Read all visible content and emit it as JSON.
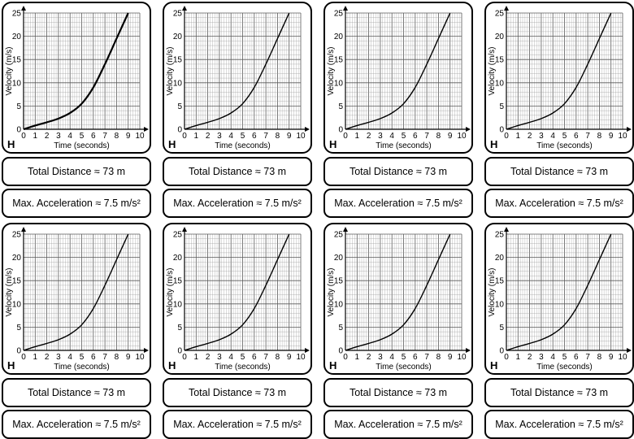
{
  "cards": [
    {
      "level": "H",
      "distance": "Total Distance ≈ 73 m",
      "acceleration": "Max. Acceleration ≈ 7.5 m/s²"
    },
    {
      "level": "H",
      "distance": "Total Distance ≈ 73 m",
      "acceleration": "Max. Acceleration ≈ 7.5 m/s²"
    },
    {
      "level": "H",
      "distance": "Total Distance ≈ 73 m",
      "acceleration": "Max. Acceleration ≈ 7.5 m/s²"
    },
    {
      "level": "H",
      "distance": "Total Distance ≈ 73 m",
      "acceleration": "Max. Acceleration ≈ 7.5 m/s²"
    },
    {
      "level": "H",
      "distance": "Total Distance ≈ 73 m",
      "acceleration": "Max. Acceleration ≈ 7.5 m/s²"
    },
    {
      "level": "H",
      "distance": "Total Distance ≈ 73 m",
      "acceleration": "Max. Acceleration ≈ 7.5 m/s²"
    },
    {
      "level": "H",
      "distance": "Total Distance ≈ 73 m",
      "acceleration": "Max. Acceleration ≈ 7.5 m/s²"
    },
    {
      "level": "H",
      "distance": "Total Distance ≈ 73 m",
      "acceleration": "Max. Acceleration ≈ 7.5 m/s²"
    }
  ],
  "chart_data": {
    "type": "line",
    "xlabel": "Time (seconds)",
    "ylabel": "Velocity (m/s)",
    "xlim": [
      0,
      10
    ],
    "ylim": [
      0,
      25
    ],
    "xticks": [
      0,
      1,
      2,
      3,
      4,
      5,
      6,
      7,
      8,
      9,
      10
    ],
    "yticks": [
      0,
      5,
      10,
      15,
      20,
      25
    ],
    "minor_grid_step_x": 0.2,
    "minor_grid_step_y": 1,
    "grid": true,
    "series": [
      {
        "name": "velocity",
        "x": [
          0,
          1,
          2,
          3,
          4,
          5,
          6,
          7,
          8,
          9
        ],
        "y": [
          0,
          0.8,
          1.5,
          2.3,
          3.5,
          5.5,
          9,
          14,
          19.5,
          25
        ]
      }
    ],
    "style": {
      "line_color": "#000000",
      "grid_color": "#9a9a9a",
      "major_grid_color": "#5a5a5a"
    }
  }
}
